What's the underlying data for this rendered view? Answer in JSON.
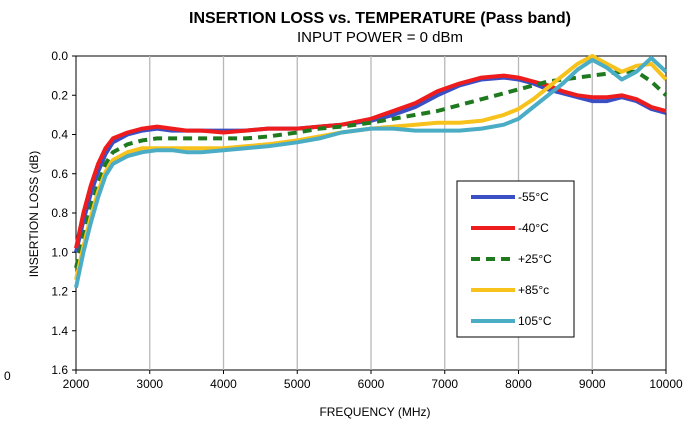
{
  "chart_data": {
    "type": "line",
    "title": "INSERTION LOSS vs. TEMPERATURE (Pass band)",
    "subtitle": "INPUT POWER = 0 dBm",
    "xlabel": "FREQUENCY (MHz)",
    "ylabel": "INSERTION LOSS (dB)",
    "xlim": [
      2000,
      10000
    ],
    "ylim": [
      0.0,
      1.6
    ],
    "y_inverted": true,
    "x_ticks": [
      "2000",
      "3000",
      "4000",
      "5000",
      "6000",
      "7000",
      "8000",
      "9000",
      "10000"
    ],
    "y_ticks": [
      "0.0",
      "0.2",
      "0.4",
      "0.6",
      "0.8",
      "1.0",
      "1.2",
      "1.4",
      "1.6"
    ],
    "x_tick_values": [
      2000,
      3000,
      4000,
      5000,
      6000,
      7000,
      8000,
      9000,
      10000
    ],
    "y_tick_values": [
      0.0,
      0.2,
      0.4,
      0.6,
      0.8,
      1.0,
      1.2,
      1.4,
      1.6
    ],
    "stray_label": "0",
    "grid": "vertical",
    "legend_position": "right",
    "x": [
      2000,
      2100,
      2200,
      2300,
      2400,
      2500,
      2700,
      2900,
      3100,
      3300,
      3500,
      3700,
      4000,
      4300,
      4600,
      5000,
      5300,
      5600,
      6000,
      6300,
      6600,
      6900,
      7200,
      7500,
      7800,
      8000,
      8200,
      8400,
      8600,
      8800,
      9000,
      9200,
      9400,
      9600,
      9800,
      10000
    ],
    "series": [
      {
        "name": "-55°C",
        "color": "#3a4fc4",
        "dash": "solid",
        "values": [
          1.0,
          0.84,
          0.7,
          0.59,
          0.5,
          0.44,
          0.4,
          0.38,
          0.37,
          0.38,
          0.38,
          0.38,
          0.38,
          0.38,
          0.37,
          0.37,
          0.36,
          0.35,
          0.33,
          0.3,
          0.26,
          0.2,
          0.15,
          0.12,
          0.11,
          0.12,
          0.14,
          0.17,
          0.19,
          0.21,
          0.23,
          0.23,
          0.21,
          0.23,
          0.27,
          0.29
        ]
      },
      {
        "name": "-40°C",
        "color": "#ee1c1c",
        "dash": "solid",
        "values": [
          0.98,
          0.8,
          0.66,
          0.55,
          0.47,
          0.42,
          0.39,
          0.37,
          0.36,
          0.37,
          0.38,
          0.38,
          0.39,
          0.38,
          0.37,
          0.37,
          0.36,
          0.35,
          0.32,
          0.28,
          0.24,
          0.18,
          0.14,
          0.11,
          0.1,
          0.11,
          0.13,
          0.15,
          0.18,
          0.2,
          0.21,
          0.21,
          0.2,
          0.22,
          0.26,
          0.28
        ]
      },
      {
        "name": "+25°C",
        "color": "#1f7a1f",
        "dash": "dashed",
        "values": [
          1.08,
          0.92,
          0.77,
          0.65,
          0.55,
          0.49,
          0.45,
          0.43,
          0.42,
          0.42,
          0.42,
          0.42,
          0.42,
          0.42,
          0.41,
          0.39,
          0.37,
          0.36,
          0.34,
          0.32,
          0.3,
          0.28,
          0.25,
          0.22,
          0.19,
          0.17,
          0.15,
          0.13,
          0.12,
          0.11,
          0.1,
          0.09,
          0.08,
          0.08,
          0.13,
          0.2
        ]
      },
      {
        "name": "+85°c",
        "color": "#f7c21b",
        "dash": "solid",
        "values": [
          1.14,
          0.97,
          0.82,
          0.69,
          0.59,
          0.53,
          0.49,
          0.47,
          0.47,
          0.47,
          0.47,
          0.47,
          0.47,
          0.46,
          0.45,
          0.43,
          0.41,
          0.39,
          0.37,
          0.36,
          0.35,
          0.34,
          0.34,
          0.33,
          0.3,
          0.27,
          0.22,
          0.16,
          0.1,
          0.04,
          0.0,
          0.04,
          0.08,
          0.05,
          0.04,
          0.12
        ]
      },
      {
        "name": "105°C",
        "color": "#4bacc6",
        "dash": "solid",
        "values": [
          1.18,
          1.0,
          0.85,
          0.72,
          0.61,
          0.55,
          0.51,
          0.49,
          0.48,
          0.48,
          0.49,
          0.49,
          0.48,
          0.47,
          0.46,
          0.44,
          0.42,
          0.39,
          0.37,
          0.37,
          0.38,
          0.38,
          0.38,
          0.37,
          0.35,
          0.32,
          0.26,
          0.2,
          0.14,
          0.07,
          0.02,
          0.06,
          0.12,
          0.08,
          0.01,
          0.08
        ]
      }
    ]
  }
}
